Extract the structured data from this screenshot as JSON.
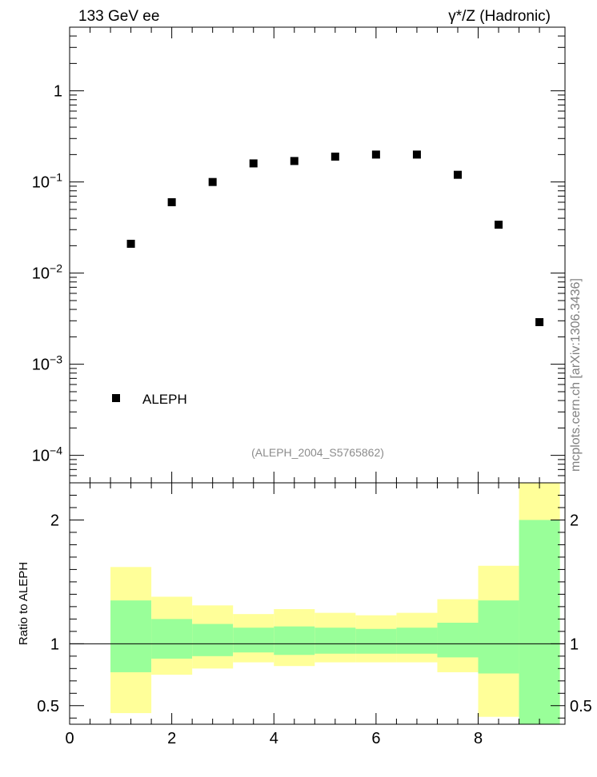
{
  "header": {
    "left_label": "133 GeV ee",
    "right_label": "γ*/Z (Hadronic)"
  },
  "side_label": "mcplots.cern.ch [arXiv:1306.3436]",
  "analysis_label": "(ALEPH_2004_S5765862)",
  "colors": {
    "band_inner": "#99ff99",
    "band_outer": "#ffff99",
    "marker": "#000000",
    "analysis_label": "#8c8c8c"
  },
  "chart_data": [
    {
      "type": "scatter",
      "panel": "main",
      "yscale": "log",
      "xlim": [
        0,
        9.7
      ],
      "ylim": [
        5e-05,
        5
      ],
      "y_ticks": [
        {
          "value": 1,
          "base": "1",
          "exp": ""
        },
        {
          "value": 0.1,
          "base": "10",
          "exp": "−1"
        },
        {
          "value": 0.01,
          "base": "10",
          "exp": "−2"
        },
        {
          "value": 0.001,
          "base": "10",
          "exp": "−3"
        },
        {
          "value": 0.0001,
          "base": "10",
          "exp": "−4"
        }
      ],
      "legend": {
        "label": "ALEPH",
        "placement": "bottom-left"
      },
      "series": [
        {
          "name": "ALEPH",
          "x": [
            1.2,
            2.0,
            2.8,
            3.6,
            4.4,
            5.2,
            6.0,
            6.8,
            7.6,
            8.4,
            9.2
          ],
          "y": [
            0.021,
            0.06,
            0.1,
            0.16,
            0.17,
            0.19,
            0.2,
            0.2,
            0.12,
            0.034,
            0.0029
          ]
        }
      ]
    },
    {
      "type": "area",
      "panel": "ratio",
      "ylabel": "Ratio to ALEPH",
      "xlim": [
        0,
        9.7
      ],
      "ylim": [
        0.35,
        2.3
      ],
      "y_ticks": [
        "0.5",
        "1",
        "2"
      ],
      "x_ticks": [
        "0",
        "2",
        "4",
        "6",
        "8"
      ],
      "reference_line": 1,
      "bins": [
        {
          "lo": 0.8,
          "hi": 1.6,
          "inner": [
            0.77,
            1.35
          ],
          "outer": [
            0.44,
            1.62
          ]
        },
        {
          "lo": 1.6,
          "hi": 2.4,
          "inner": [
            0.88,
            1.2
          ],
          "outer": [
            0.75,
            1.38
          ]
        },
        {
          "lo": 2.4,
          "hi": 3.2,
          "inner": [
            0.9,
            1.16
          ],
          "outer": [
            0.8,
            1.31
          ]
        },
        {
          "lo": 3.2,
          "hi": 4.0,
          "inner": [
            0.93,
            1.13
          ],
          "outer": [
            0.85,
            1.24
          ]
        },
        {
          "lo": 4.0,
          "hi": 4.8,
          "inner": [
            0.91,
            1.14
          ],
          "outer": [
            0.82,
            1.28
          ]
        },
        {
          "lo": 4.8,
          "hi": 5.6,
          "inner": [
            0.92,
            1.13
          ],
          "outer": [
            0.85,
            1.25
          ]
        },
        {
          "lo": 5.6,
          "hi": 6.4,
          "inner": [
            0.92,
            1.12
          ],
          "outer": [
            0.85,
            1.23
          ]
        },
        {
          "lo": 6.4,
          "hi": 7.2,
          "inner": [
            0.92,
            1.13
          ],
          "outer": [
            0.85,
            1.25
          ]
        },
        {
          "lo": 7.2,
          "hi": 8.0,
          "inner": [
            0.89,
            1.17
          ],
          "outer": [
            0.77,
            1.36
          ]
        },
        {
          "lo": 8.0,
          "hi": 8.8,
          "inner": [
            0.76,
            1.35
          ],
          "outer": [
            0.41,
            1.63
          ]
        },
        {
          "lo": 8.8,
          "hi": 9.6,
          "inner": [
            0.35,
            2.0
          ],
          "outer": [
            0.35,
            2.3
          ]
        }
      ]
    }
  ]
}
